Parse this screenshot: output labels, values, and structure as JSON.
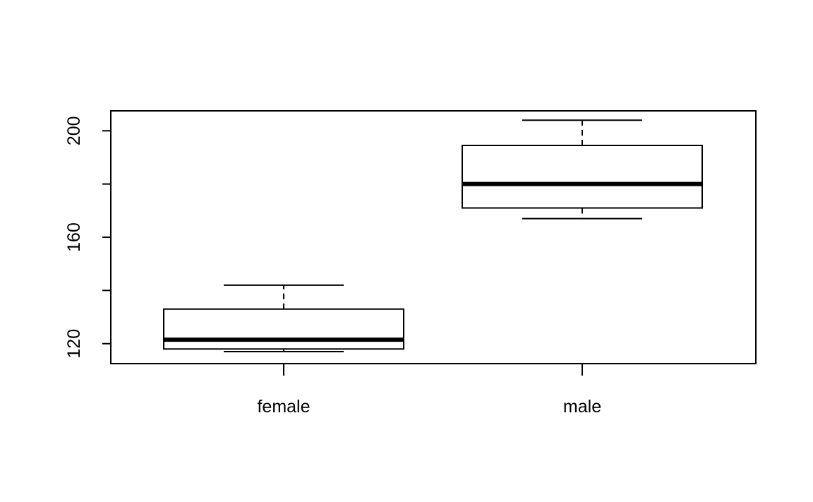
{
  "chart_data": {
    "type": "boxplot",
    "title": "",
    "xlabel": "",
    "ylabel": "",
    "categories": [
      "female",
      "male"
    ],
    "boxes": [
      {
        "category": "female",
        "whisker_low": 117,
        "q1": 118,
        "median": 121.5,
        "q3": 133,
        "whisker_high": 142
      },
      {
        "category": "male",
        "whisker_low": 167,
        "q1": 171,
        "median": 180,
        "q3": 194.5,
        "whisker_high": 204
      }
    ],
    "ylim": [
      112.5,
      207.5
    ],
    "yticks": [
      120,
      140,
      160,
      180,
      200
    ],
    "ytick_labels": [
      "120",
      "",
      "160",
      "",
      "200"
    ],
    "grid": false,
    "colors": {
      "stroke": "#000000",
      "fill": "#ffffff"
    }
  }
}
